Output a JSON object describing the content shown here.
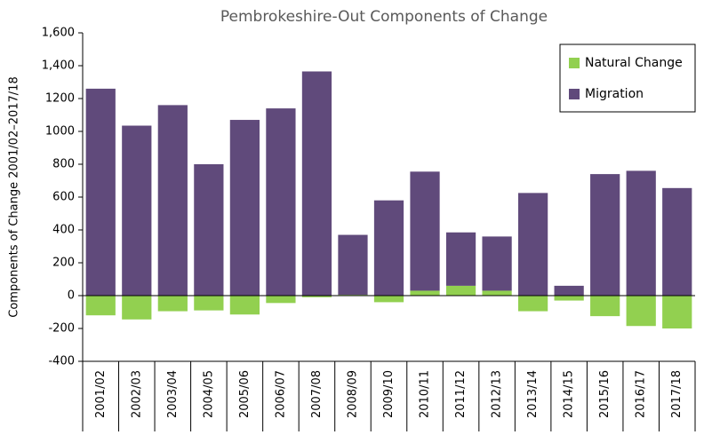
{
  "chart_data": {
    "type": "stacked_bar",
    "title": "Pembrokeshire-Out Components of Change",
    "y_label": "Components of Change 2001/02–2017/18",
    "categories": [
      "2001/02",
      "2002/03",
      "2003/04",
      "2004/05",
      "2005/06",
      "2006/07",
      "2007/08",
      "2008/09",
      "2009/10",
      "2010/11",
      "2011/12",
      "2012/13",
      "2013/14",
      "2014/15",
      "2015/16",
      "2016/17",
      "2017/18"
    ],
    "series": [
      {
        "name": "Natural Change",
        "color": "#92d050",
        "values": [
          -120,
          -145,
          -95,
          -90,
          -115,
          -45,
          -10,
          5,
          -40,
          30,
          60,
          30,
          -95,
          -30,
          -125,
          -185,
          -200
        ]
      },
      {
        "name": "Migration",
        "color": "#604a7b",
        "values": [
          1260,
          1035,
          1160,
          800,
          1070,
          1140,
          1365,
          365,
          580,
          725,
          325,
          330,
          625,
          60,
          740,
          760,
          655
        ]
      }
    ],
    "ylim": [
      -400,
      1600
    ],
    "yticks": [
      -400,
      -200,
      0,
      200,
      400,
      600,
      800,
      1000,
      1200,
      {
        "value": 1400,
        "label": "1,400"
      },
      {
        "value": 1600,
        "label": "1,600"
      }
    ],
    "legend": "top-right"
  }
}
